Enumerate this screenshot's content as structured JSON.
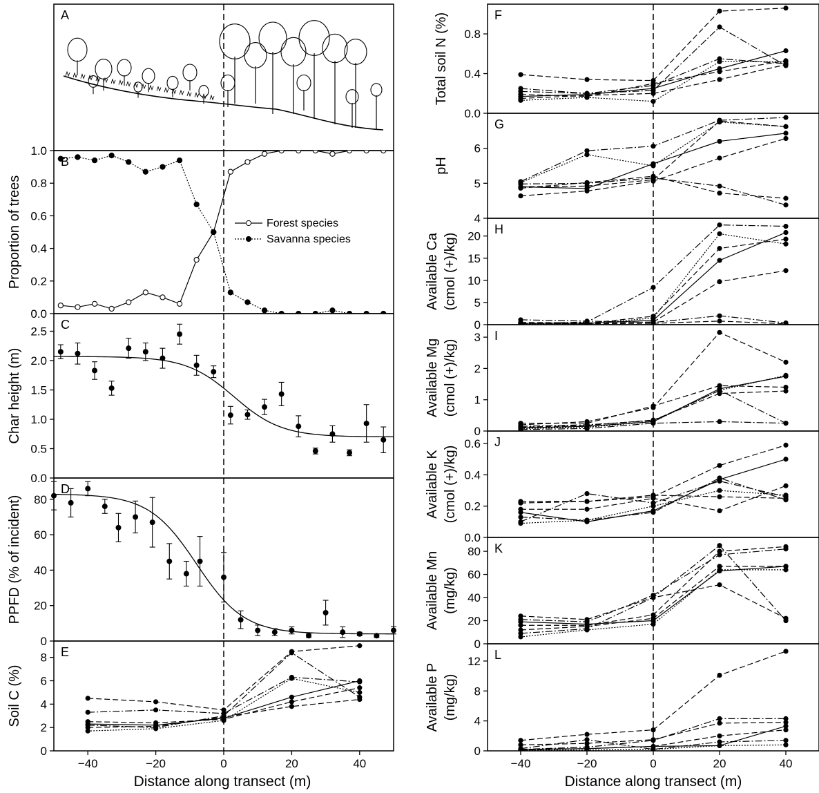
{
  "figure": {
    "left_xlabel": "Distance along transect (m)",
    "right_xlabel": "Distance along transect (m)"
  },
  "chart_data": [
    {
      "panel": "A",
      "type": "illustration",
      "description_label": "A"
    },
    {
      "panel": "B",
      "type": "line",
      "ylabel": "Proportion of trees",
      "xlim": [
        -50,
        50
      ],
      "ylim": [
        0,
        1.0
      ],
      "yticks": [
        "0.0",
        "0.2",
        "0.4",
        "0.6",
        "0.8",
        "1.0"
      ],
      "legend": "center-right",
      "series": [
        {
          "name": "Forest species",
          "marker": "open",
          "style": "solid",
          "x": [
            -48,
            -43,
            -38,
            -33,
            -28,
            -23,
            -18,
            -13,
            -8,
            -3,
            2,
            7,
            12,
            17,
            22,
            27,
            32,
            37,
            42,
            47
          ],
          "y": [
            0.05,
            0.04,
            0.06,
            0.03,
            0.07,
            0.13,
            0.1,
            0.06,
            0.33,
            0.5,
            0.87,
            0.93,
            0.98,
            1.0,
            1.0,
            1.0,
            0.98,
            1.0,
            1.0,
            1.0
          ]
        },
        {
          "name": "Savanna species",
          "marker": "filled",
          "style": "dotted",
          "x": [
            -48,
            -43,
            -38,
            -33,
            -28,
            -23,
            -18,
            -13,
            -8,
            -3,
            2,
            7,
            12,
            17,
            22,
            27,
            32,
            37,
            42,
            47
          ],
          "y": [
            0.95,
            0.96,
            0.94,
            0.97,
            0.93,
            0.87,
            0.9,
            0.94,
            0.67,
            0.5,
            0.13,
            0.07,
            0.02,
            0.0,
            0.0,
            0.0,
            0.02,
            0.0,
            0.0,
            0.0
          ]
        }
      ]
    },
    {
      "panel": "C",
      "type": "scatter",
      "ylabel": "Char height (m)",
      "xlim": [
        -50,
        50
      ],
      "ylim": [
        0,
        2.8
      ],
      "yticks": [
        "0.0",
        "0.5",
        "1.0",
        "1.5",
        "2.0",
        "2.5"
      ],
      "fit": {
        "top": 2.07,
        "bottom": 0.7,
        "center": 3,
        "scale": 7
      },
      "points": {
        "x": [
          -48,
          -43,
          -38,
          -33,
          -28,
          -23,
          -18,
          -13,
          -8,
          -3,
          2,
          7,
          12,
          17,
          22,
          27,
          32,
          37,
          42,
          47
        ],
        "y": [
          2.15,
          2.12,
          1.83,
          1.53,
          2.21,
          2.15,
          2.04,
          2.45,
          1.92,
          1.81,
          1.07,
          1.08,
          1.21,
          1.43,
          0.88,
          0.46,
          0.75,
          0.43,
          0.93,
          0.65
        ],
        "err": [
          0.12,
          0.18,
          0.15,
          0.12,
          0.17,
          0.15,
          0.17,
          0.17,
          0.17,
          0.1,
          0.15,
          0.08,
          0.13,
          0.2,
          0.18,
          0.05,
          0.14,
          0.05,
          0.32,
          0.22
        ]
      }
    },
    {
      "panel": "D",
      "type": "scatter",
      "ylabel": "PPFD (% of incident)",
      "xlim": [
        -50,
        50
      ],
      "ylim": [
        0,
        92
      ],
      "yticks": [
        "0",
        "20",
        "40",
        "60",
        "80"
      ],
      "fit": {
        "top": 83,
        "bottom": 4,
        "center": -8,
        "scale": 7
      },
      "points": {
        "x": [
          -50,
          -45,
          -40,
          -35,
          -31,
          -26,
          -21,
          -16,
          -11,
          -7,
          0,
          5,
          10,
          15,
          20,
          25,
          30,
          35,
          40,
          45,
          50
        ],
        "y": [
          82,
          78,
          86,
          76,
          64,
          70,
          67,
          45,
          38,
          45,
          36,
          12,
          6,
          5,
          6,
          3,
          16,
          5,
          4,
          3,
          6
        ],
        "err": [
          8,
          8,
          4,
          4,
          8,
          9,
          14,
          10,
          7,
          14,
          14,
          5,
          3,
          2,
          2,
          1,
          7,
          3,
          1,
          1,
          2
        ]
      }
    },
    {
      "panel": "E",
      "type": "line",
      "ylabel": "Soil C (%)",
      "xlim": [
        -50,
        50
      ],
      "ylim": [
        0,
        9.4
      ],
      "yticks": [
        "0",
        "2",
        "4",
        "6",
        "8"
      ],
      "xticks": [
        "−40",
        "−20",
        "0",
        "20",
        "40"
      ],
      "x": [
        -40,
        -20,
        0,
        20,
        40
      ],
      "series": [
        {
          "style": "solid",
          "y": [
            2.3,
            2.2,
            2.8,
            4.6,
            6.0
          ]
        },
        {
          "style": "dashed",
          "y": [
            4.5,
            4.2,
            3.5,
            8.5,
            9.0
          ]
        },
        {
          "style": "dashdot",
          "y": [
            2.2,
            2.0,
            3.0,
            8.4,
            4.6
          ]
        },
        {
          "style": "dashdot",
          "y": [
            3.3,
            3.5,
            3.2,
            6.3,
            5.9
          ]
        },
        {
          "style": "dotted",
          "y": [
            1.7,
            1.9,
            2.6,
            6.2,
            5.0
          ]
        },
        {
          "style": "dashed",
          "y": [
            2.0,
            2.1,
            2.9,
            3.8,
            4.4
          ]
        },
        {
          "style": "dashed",
          "y": [
            2.5,
            2.4,
            2.7,
            4.2,
            5.4
          ]
        }
      ]
    },
    {
      "panel": "F",
      "type": "line",
      "ylabel": "Total soil N (%)",
      "xlim": [
        -50,
        50
      ],
      "ylim": [
        0,
        1.1
      ],
      "yticks": [
        "0.0",
        "0.4",
        "0.8"
      ],
      "x": [
        -40,
        -20,
        0,
        20,
        40
      ],
      "series": [
        {
          "style": "solid",
          "y": [
            0.17,
            0.19,
            0.25,
            0.45,
            0.63
          ]
        },
        {
          "style": "dashed",
          "y": [
            0.39,
            0.34,
            0.33,
            1.03,
            1.06
          ]
        },
        {
          "style": "dashdot",
          "y": [
            0.25,
            0.2,
            0.23,
            0.87,
            0.48
          ]
        },
        {
          "style": "dashdot",
          "y": [
            0.22,
            0.2,
            0.28,
            0.55,
            0.5
          ]
        },
        {
          "style": "dotted",
          "y": [
            0.13,
            0.16,
            0.12,
            0.52,
            0.52
          ]
        },
        {
          "style": "dashed",
          "y": [
            0.15,
            0.18,
            0.2,
            0.34,
            0.49
          ]
        },
        {
          "style": "dashed",
          "y": [
            0.19,
            0.17,
            0.3,
            0.42,
            0.53
          ]
        }
      ]
    },
    {
      "panel": "G",
      "type": "line",
      "ylabel": "pH",
      "xlim": [
        -50,
        50
      ],
      "ylim": [
        4,
        7
      ],
      "yticks": [
        "4",
        "5",
        "6"
      ],
      "x": [
        -40,
        -20,
        0,
        20,
        40
      ],
      "series": [
        {
          "style": "solid",
          "y": [
            4.9,
            4.85,
            5.56,
            6.2,
            6.43
          ]
        },
        {
          "style": "dashed",
          "y": [
            4.64,
            4.78,
            5.06,
            5.72,
            6.28
          ]
        },
        {
          "style": "dashdot",
          "y": [
            5.05,
            5.93,
            6.06,
            6.8,
            6.88
          ]
        },
        {
          "style": "dotted",
          "y": [
            5.02,
            5.82,
            5.5,
            6.75,
            6.62
          ]
        },
        {
          "style": "dashed",
          "y": [
            4.9,
            4.92,
            5.1,
            6.78,
            6.62
          ]
        },
        {
          "style": "dashdot",
          "y": [
            4.98,
            5.0,
            5.15,
            4.92,
            4.38
          ]
        },
        {
          "style": "dashed",
          "y": [
            4.86,
            5.02,
            5.2,
            4.72,
            4.57
          ]
        }
      ]
    },
    {
      "panel": "H",
      "type": "line",
      "ylabel": "Available Ca\n(cmol (+)/kg)",
      "xlim": [
        -50,
        50
      ],
      "ylim": [
        0,
        24
      ],
      "yticks": [
        "0",
        "5",
        "10",
        "15",
        "20"
      ],
      "x": [
        -40,
        -20,
        0,
        20,
        40
      ],
      "series": [
        {
          "style": "solid",
          "y": [
            0.3,
            0.3,
            1.0,
            14.5,
            20.8
          ]
        },
        {
          "style": "dashed",
          "y": [
            0.5,
            0.4,
            0.6,
            9.7,
            12.2
          ]
        },
        {
          "style": "dashdot",
          "y": [
            0.2,
            0.6,
            8.4,
            22.5,
            22.2
          ]
        },
        {
          "style": "dotted",
          "y": [
            0.2,
            0.2,
            1.5,
            20.5,
            18.2
          ]
        },
        {
          "style": "dashed",
          "y": [
            0.4,
            0.3,
            1.9,
            17.2,
            19.3
          ]
        },
        {
          "style": "dashdot",
          "y": [
            1.1,
            0.8,
            0.5,
            2.0,
            0.4
          ]
        },
        {
          "style": "dashed",
          "y": [
            0.3,
            0.2,
            0.3,
            0.8,
            0.2
          ]
        }
      ]
    },
    {
      "panel": "I",
      "type": "line",
      "ylabel": "Available Mg\n(cmol (+)/kg)",
      "xlim": [
        -50,
        50
      ],
      "ylim": [
        0,
        3.4
      ],
      "yticks": [
        "0",
        "1",
        "2",
        "3"
      ],
      "x": [
        -40,
        -20,
        0,
        20,
        40
      ],
      "series": [
        {
          "style": "solid",
          "y": [
            0.1,
            0.15,
            0.3,
            1.35,
            1.75
          ]
        },
        {
          "style": "dashed",
          "y": [
            0.2,
            0.3,
            0.75,
            3.15,
            2.2
          ]
        },
        {
          "style": "dashdot",
          "y": [
            0.15,
            0.2,
            0.33,
            1.3,
            0.25
          ]
        },
        {
          "style": "dotted",
          "y": [
            0.08,
            0.12,
            0.3,
            1.3,
            1.78
          ]
        },
        {
          "style": "dashed",
          "y": [
            0.25,
            0.25,
            0.8,
            1.45,
            1.4
          ]
        },
        {
          "style": "dashdot",
          "y": [
            0.05,
            0.08,
            0.25,
            0.3,
            0.25
          ]
        },
        {
          "style": "dashed",
          "y": [
            0.12,
            0.18,
            0.35,
            1.2,
            1.28
          ]
        }
      ]
    },
    {
      "panel": "J",
      "type": "line",
      "ylabel": "Available K\n(cmol (+)/kg)",
      "xlim": [
        -50,
        50
      ],
      "ylim": [
        0,
        0.68
      ],
      "yticks": [
        "0.0",
        "0.2",
        "0.4",
        "0.6"
      ],
      "x": [
        -40,
        -20,
        0,
        20,
        40
      ],
      "series": [
        {
          "style": "solid",
          "y": [
            0.16,
            0.1,
            0.17,
            0.37,
            0.5
          ]
        },
        {
          "style": "dashed",
          "y": [
            0.22,
            0.23,
            0.26,
            0.46,
            0.59
          ]
        },
        {
          "style": "dashdot",
          "y": [
            0.1,
            0.28,
            0.22,
            0.36,
            0.26
          ]
        },
        {
          "style": "dotted",
          "y": [
            0.09,
            0.11,
            0.2,
            0.3,
            0.27
          ]
        },
        {
          "style": "dashed",
          "y": [
            0.18,
            0.18,
            0.25,
            0.17,
            0.33
          ]
        },
        {
          "style": "dashdot",
          "y": [
            0.13,
            0.11,
            0.16,
            0.38,
            0.24
          ]
        },
        {
          "style": "dashed",
          "y": [
            0.23,
            0.23,
            0.27,
            0.26,
            0.25
          ]
        }
      ]
    },
    {
      "panel": "K",
      "type": "line",
      "ylabel": "Available Mn\n(mg/kg)",
      "xlim": [
        -50,
        50
      ],
      "ylim": [
        0,
        92
      ],
      "yticks": [
        "0",
        "20",
        "40",
        "60",
        "80"
      ],
      "x": [
        -40,
        -20,
        0,
        20,
        40
      ],
      "series": [
        {
          "style": "solid",
          "y": [
            19,
            17,
            20,
            63,
            67
          ]
        },
        {
          "style": "dashed",
          "y": [
            24,
            21,
            40,
            51,
            22
          ]
        },
        {
          "style": "dashdot",
          "y": [
            9,
            13,
            40,
            85,
            20
          ]
        },
        {
          "style": "dotted",
          "y": [
            6,
            12,
            17,
            64,
            64
          ]
        },
        {
          "style": "dashed",
          "y": [
            16,
            16,
            25,
            80,
            84
          ]
        },
        {
          "style": "dashdot",
          "y": [
            21,
            19,
            42,
            77,
            82
          ]
        },
        {
          "style": "dashed",
          "y": [
            12,
            15,
            22,
            67,
            67
          ]
        }
      ]
    },
    {
      "panel": "L",
      "type": "line",
      "ylabel": "Available P\n(mg/kg)",
      "xlim": [
        -50,
        50
      ],
      "ylim": [
        0,
        14.3
      ],
      "yticks": [
        "0",
        "4",
        "8",
        "12"
      ],
      "x": [
        -40,
        -20,
        0,
        20,
        40
      ],
      "series": [
        {
          "style": "solid",
          "y": [
            0.2,
            0.3,
            0.6,
            0.7,
            3.3
          ]
        },
        {
          "style": "dashed",
          "y": [
            1.4,
            2.2,
            2.8,
            10.1,
            13.3
          ]
        },
        {
          "style": "dashdot",
          "y": [
            0.2,
            0.5,
            1.4,
            4.3,
            4.3
          ]
        },
        {
          "style": "dotted",
          "y": [
            0.1,
            0.1,
            0.2,
            0.7,
            0.8
          ]
        },
        {
          "style": "dashed",
          "y": [
            0.8,
            1.0,
            1.5,
            3.7,
            3.8
          ]
        },
        {
          "style": "dashdot",
          "y": [
            0.3,
            1.5,
            0.2,
            1.2,
            1.4
          ]
        },
        {
          "style": "dashed",
          "y": [
            0.1,
            0.3,
            0.6,
            2.0,
            2.8
          ]
        }
      ]
    }
  ],
  "colors": {
    "ink": "#000000",
    "background": "#ffffff"
  }
}
